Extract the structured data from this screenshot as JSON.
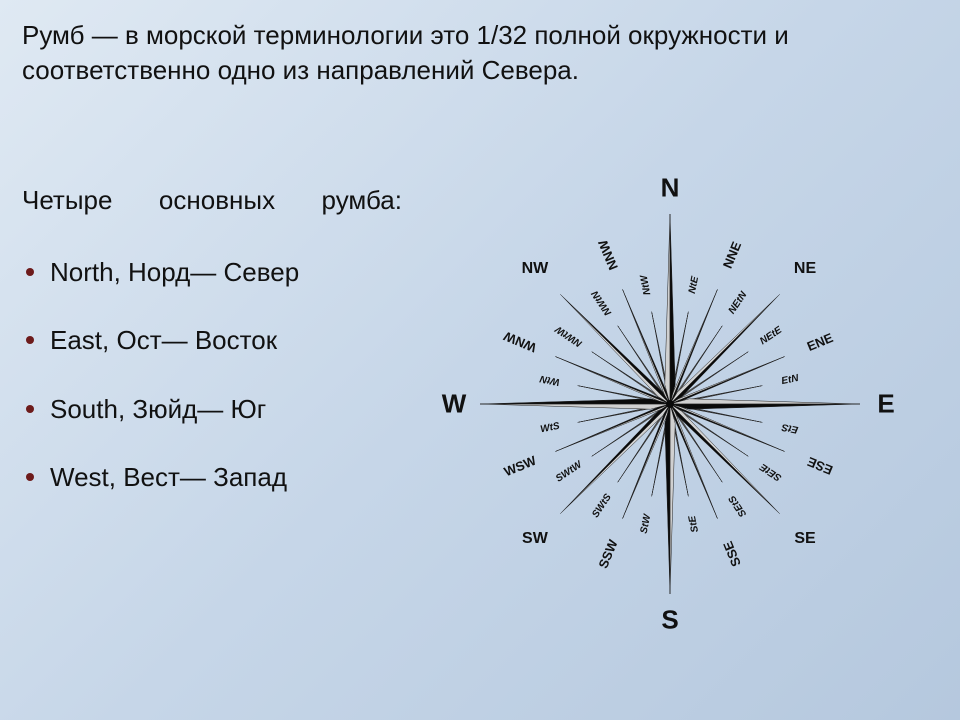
{
  "title": "Румб — в морской терминологии это 1/32 полной окружности и соответственно одно из направлений Севера.",
  "subhead": "Четыре основных румба:",
  "bullets": [
    "North, Норд— Север",
    "East, Ост— Восток",
    "South, Зюйд— Юг",
    "West, Вест— Запад"
  ],
  "rose": {
    "size": 520,
    "r4": 190,
    "r8": 155,
    "r16": 124,
    "r32": 94,
    "bg": "#ffffff00",
    "dark": "#0a0a0a",
    "light": "#d0d0d0",
    "grey": "#7f7f7f",
    "outline": "#222222",
    "label_color": "#111111",
    "cardinal_font": 26,
    "inter_font": 16,
    "sixteen_font": 13,
    "thirtytwo_font": 10,
    "directions4": [
      "N",
      "E",
      "S",
      "W"
    ],
    "directions8": [
      "NE",
      "SE",
      "SW",
      "NW"
    ],
    "directions16": [
      "NNE",
      "ENE",
      "ESE",
      "SSE",
      "SSW",
      "WSW",
      "WNW",
      "NNW"
    ],
    "directions32": [
      "NtE",
      "NEtN",
      "NEtE",
      "EtN",
      "EtS",
      "SEtE",
      "SEtS",
      "StE",
      "StW",
      "SWtS",
      "SWtW",
      "WtS",
      "WtN",
      "NWtW",
      "NWtN",
      "NtW"
    ]
  }
}
